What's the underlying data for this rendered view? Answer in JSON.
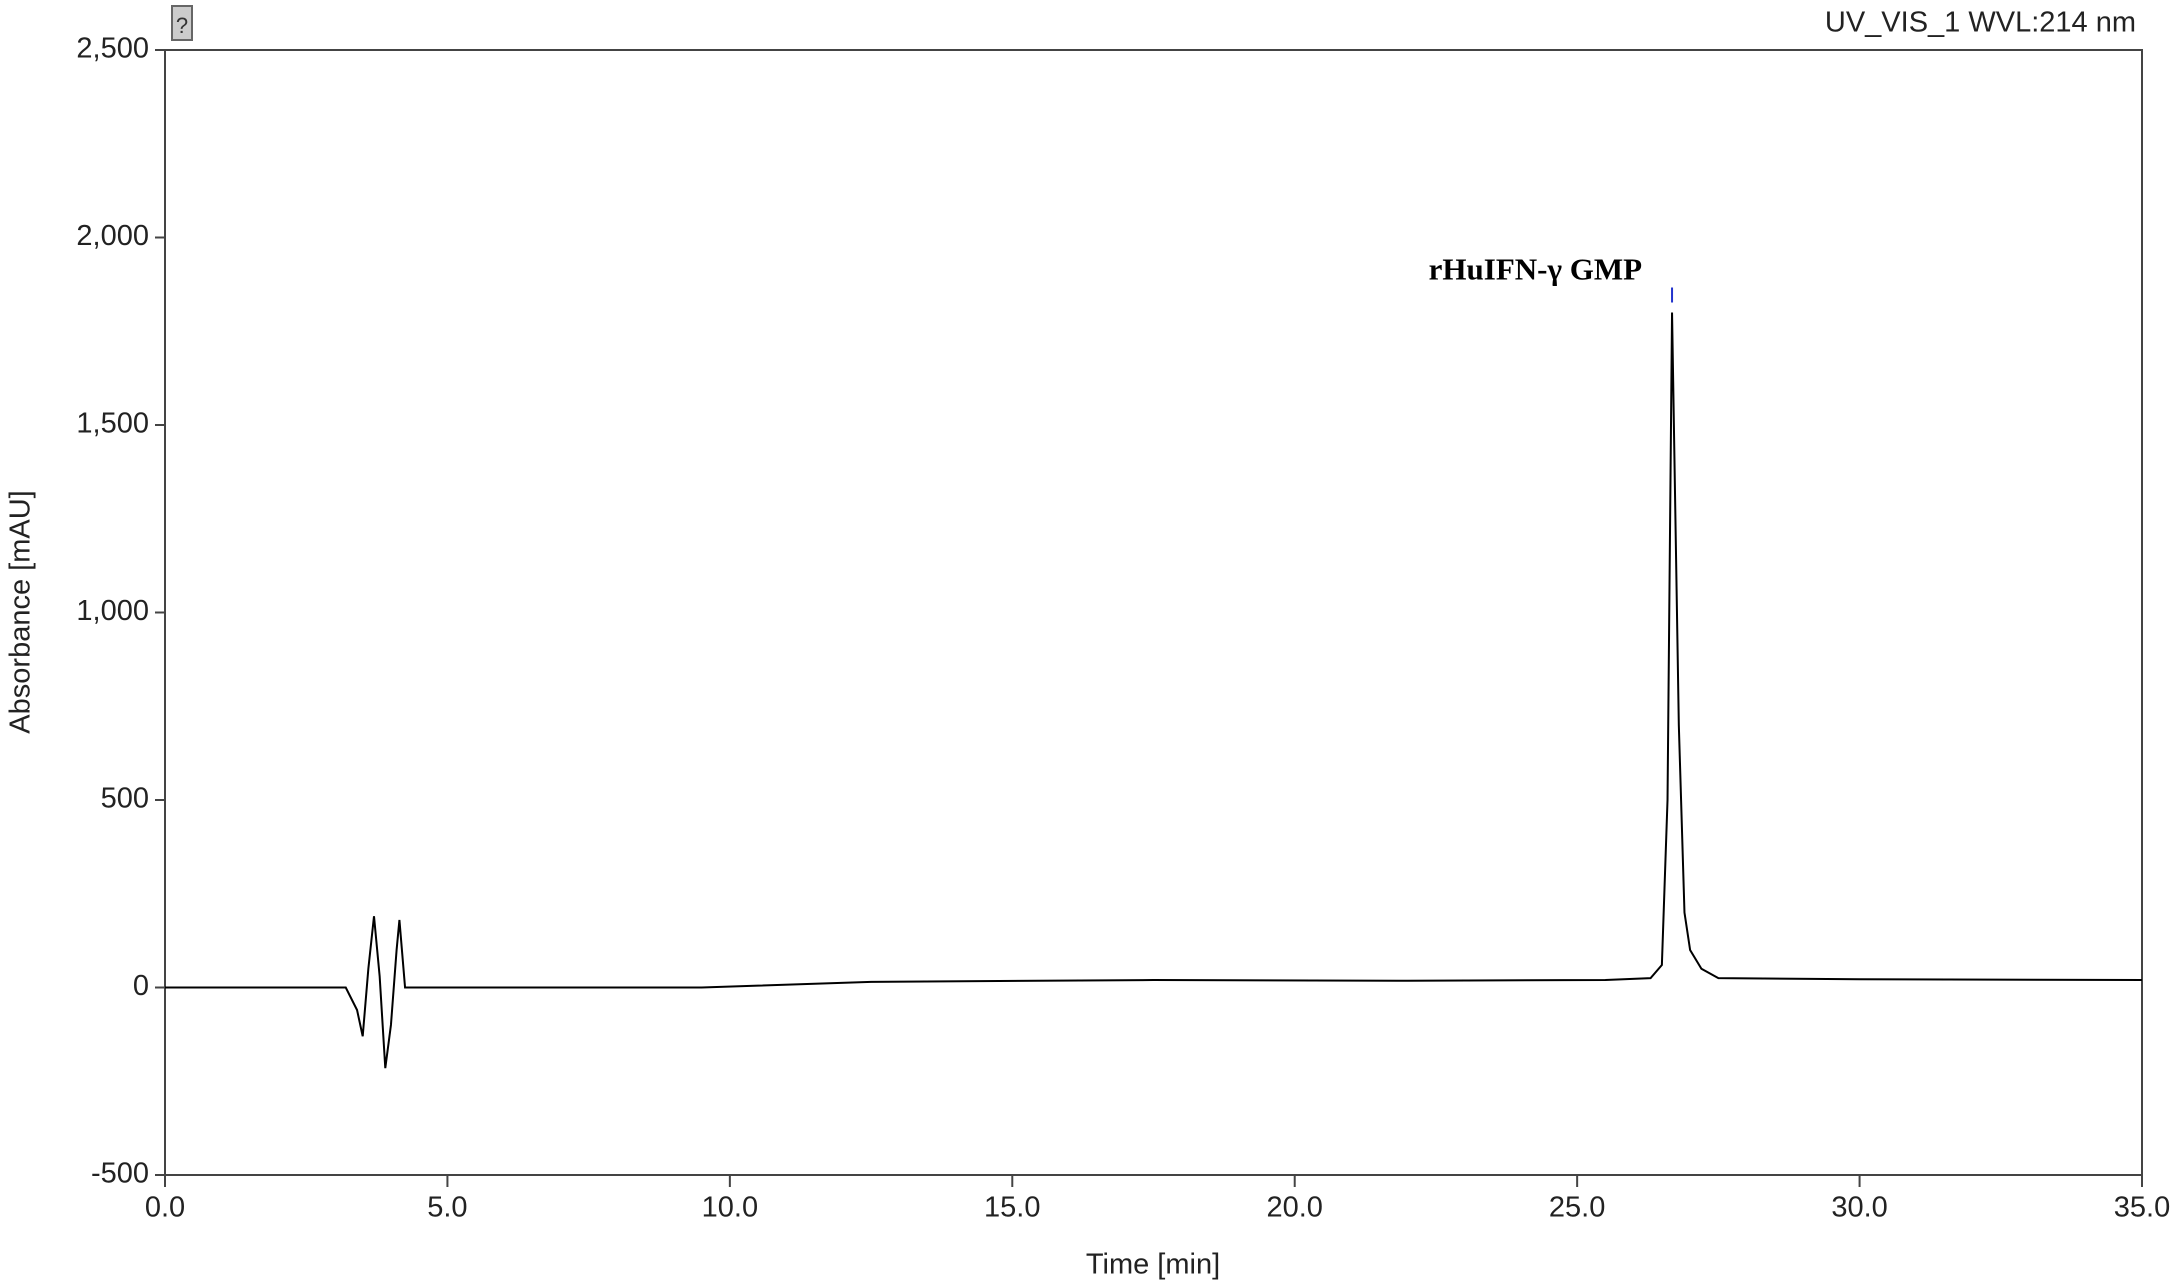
{
  "chart_data": {
    "type": "line",
    "channel": "UV_VIS_1 WVL:214 nm",
    "y_label": "Absorbance [mAU]",
    "x_label": "Time [min]",
    "annotation": "rHuIFN-γ GMP",
    "color": "#000000",
    "x": [
      0,
      3.2,
      3.4,
      3.5,
      3.6,
      3.7,
      3.8,
      3.9,
      4.0,
      4.1,
      4.15,
      4.25,
      9.5,
      10.5,
      12.5,
      17.5,
      22,
      25.5,
      26.3,
      26.5,
      26.6,
      26.68,
      26.8,
      26.9,
      27.0,
      27.2,
      27.5,
      30,
      35
    ],
    "values": [
      0,
      0,
      -60,
      -130,
      50,
      190,
      30,
      -215,
      -100,
      100,
      180,
      0,
      0,
      5,
      15,
      20,
      18,
      20,
      25,
      60,
      500,
      1800,
      700,
      200,
      100,
      50,
      25,
      22,
      20
    ],
    "xlim": [
      0,
      35
    ],
    "ylim": [
      -500,
      2500
    ],
    "xticks": [
      {
        "value": 0,
        "label": "0.0"
      },
      {
        "value": 5,
        "label": "5.0"
      },
      {
        "value": 10,
        "label": "10.0"
      },
      {
        "value": 15,
        "label": "15.0"
      },
      {
        "value": 20,
        "label": "20.0"
      },
      {
        "value": 25,
        "label": "25.0"
      },
      {
        "value": 30,
        "label": "30.0"
      },
      {
        "value": 35,
        "label": "35.0"
      }
    ],
    "yticks": [
      -500,
      0,
      500,
      {
        "value": 1000,
        "label": "1,000"
      },
      {
        "value": 1500,
        "label": "1,500"
      },
      {
        "value": 2000,
        "label": "2,000"
      },
      {
        "value": 2500,
        "label": "2,500"
      }
    ]
  }
}
